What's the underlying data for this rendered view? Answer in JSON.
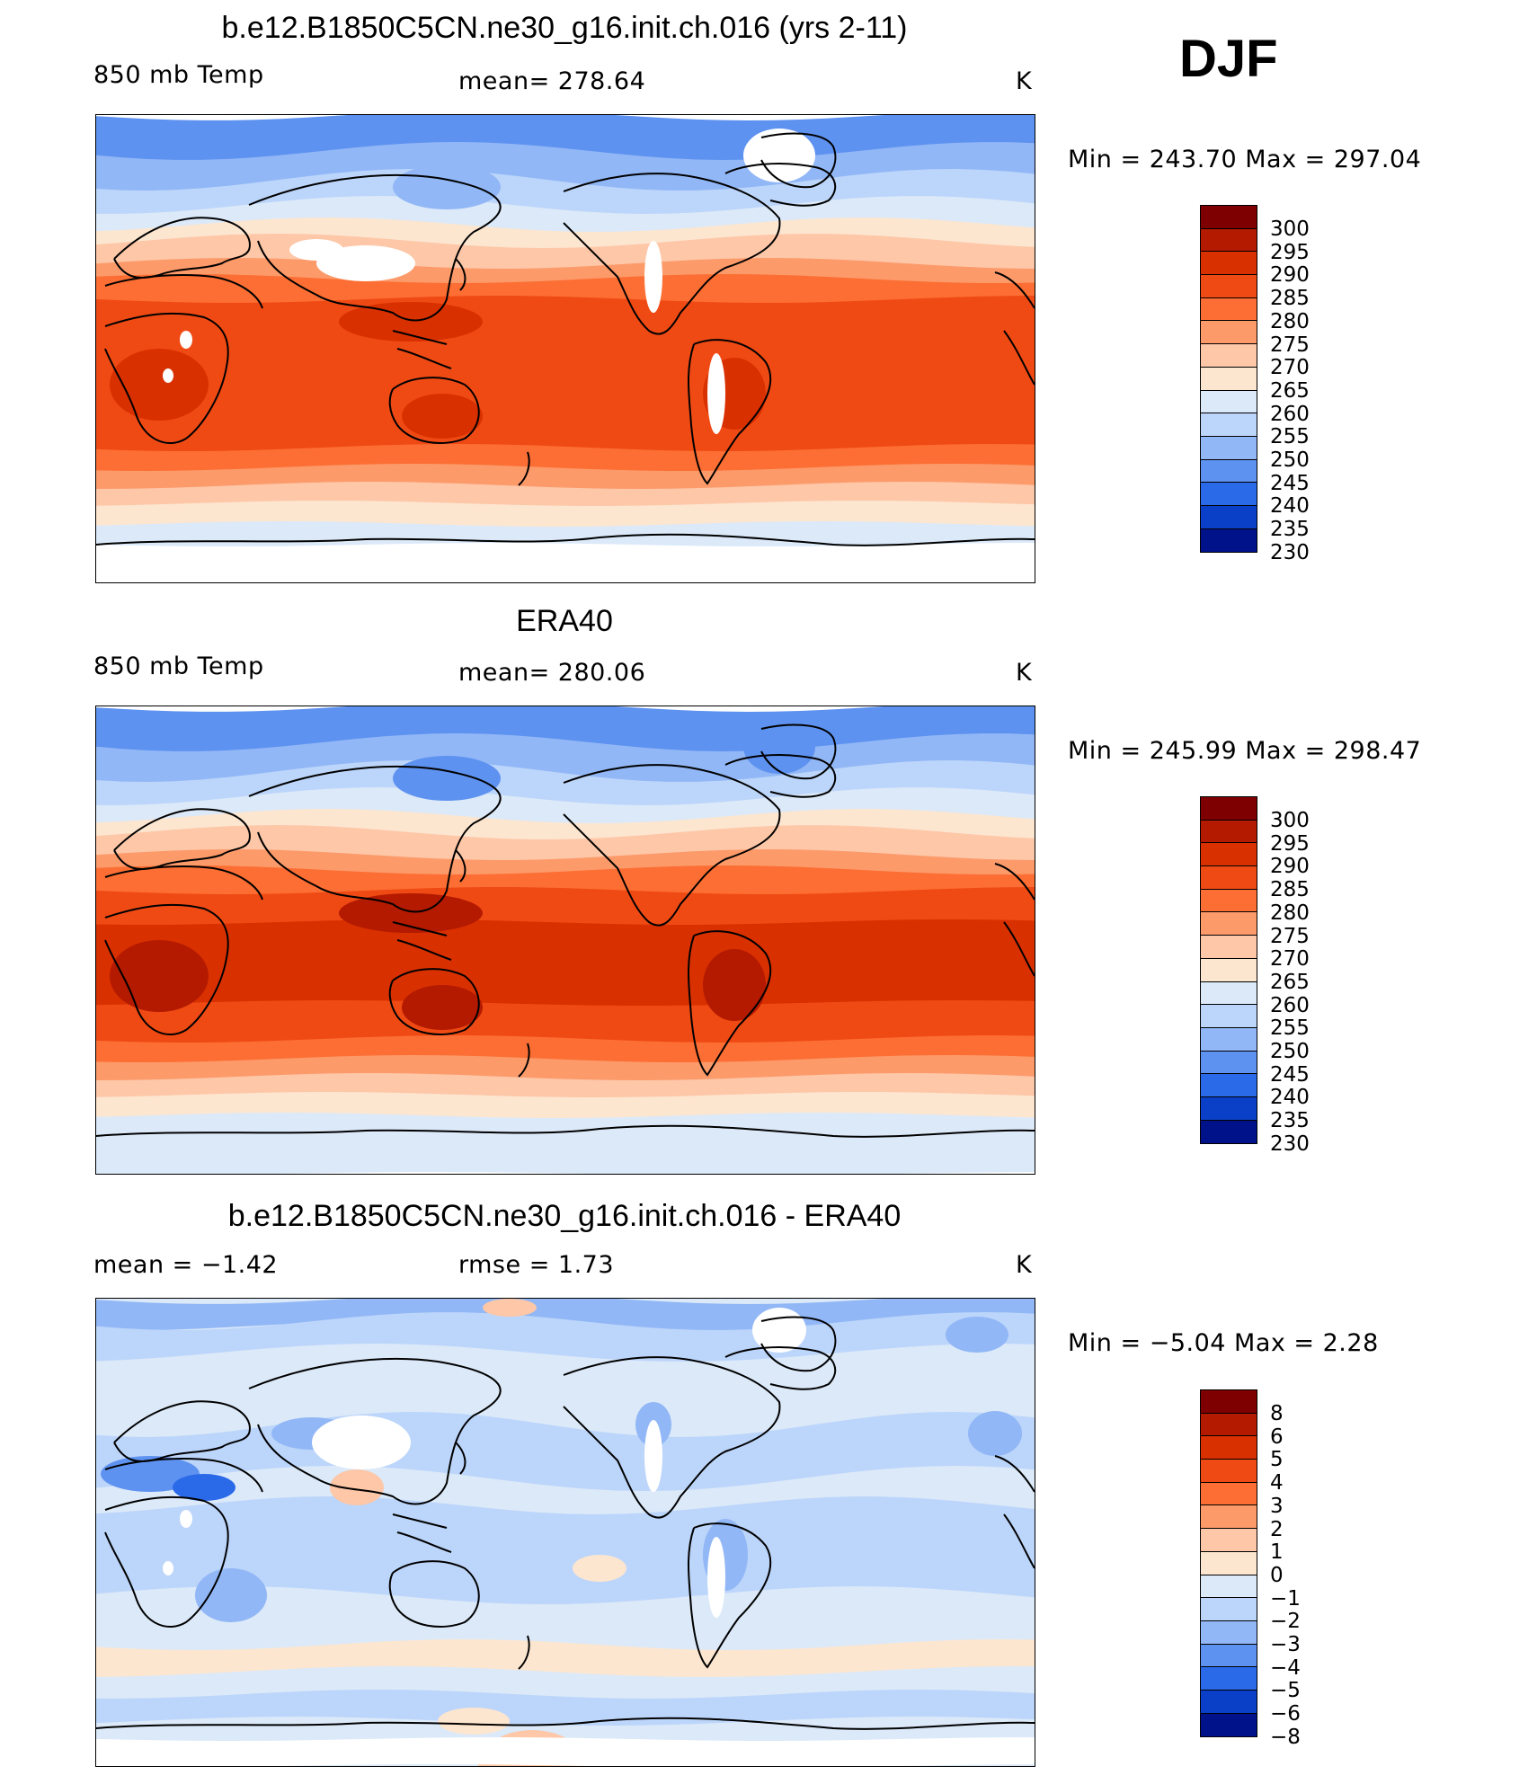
{
  "season": "DJF",
  "panels": [
    {
      "title": "b.e12.B1850C5CN.ne30_g16.init.ch.016 (yrs 2-11)",
      "left_label": "850 mb Temp",
      "center_label": "mean=  278.64",
      "right_label": "K",
      "min_max": "Min  =  243.70  Max  =  297.04",
      "colorbar_levels": [
        "300",
        "295",
        "290",
        "285",
        "280",
        "275",
        "270",
        "265",
        "260",
        "255",
        "250",
        "245",
        "240",
        "235",
        "230"
      ],
      "map_type": "model"
    },
    {
      "title": "ERA40",
      "left_label": "850 mb Temp",
      "center_label": "mean=  280.06",
      "right_label": "K",
      "min_max": "Min  =  245.99  Max  =  298.47",
      "colorbar_levels": [
        "300",
        "295",
        "290",
        "285",
        "280",
        "275",
        "270",
        "265",
        "260",
        "255",
        "250",
        "245",
        "240",
        "235",
        "230"
      ],
      "map_type": "obs"
    },
    {
      "title": "b.e12.B1850C5CN.ne30_g16.init.ch.016 - ERA40",
      "left_label": "mean  =     −1.42",
      "center_label": "rmse  =      1.73",
      "right_label": "K",
      "min_max": "Min  =    −5.04  Max  =      2.28",
      "colorbar_levels": [
        "8",
        "6",
        "5",
        "4",
        "3",
        "2",
        "1",
        "0",
        "−1",
        "−2",
        "−3",
        "−4",
        "−5",
        "−6",
        "−8"
      ],
      "map_type": "diff"
    }
  ],
  "colors": {
    "scale": [
      "#7f0000",
      "#b31a00",
      "#d93000",
      "#f04a14",
      "#fc6e33",
      "#fd9a6a",
      "#fdc7a8",
      "#fde6d0",
      "#dbe9f9",
      "#bcd5fa",
      "#91b7f6",
      "#5e92f0",
      "#2a6ae8",
      "#0a40c8",
      "#00128a"
    ],
    "white_missing": "#ffffff",
    "coast": "#000000"
  }
}
